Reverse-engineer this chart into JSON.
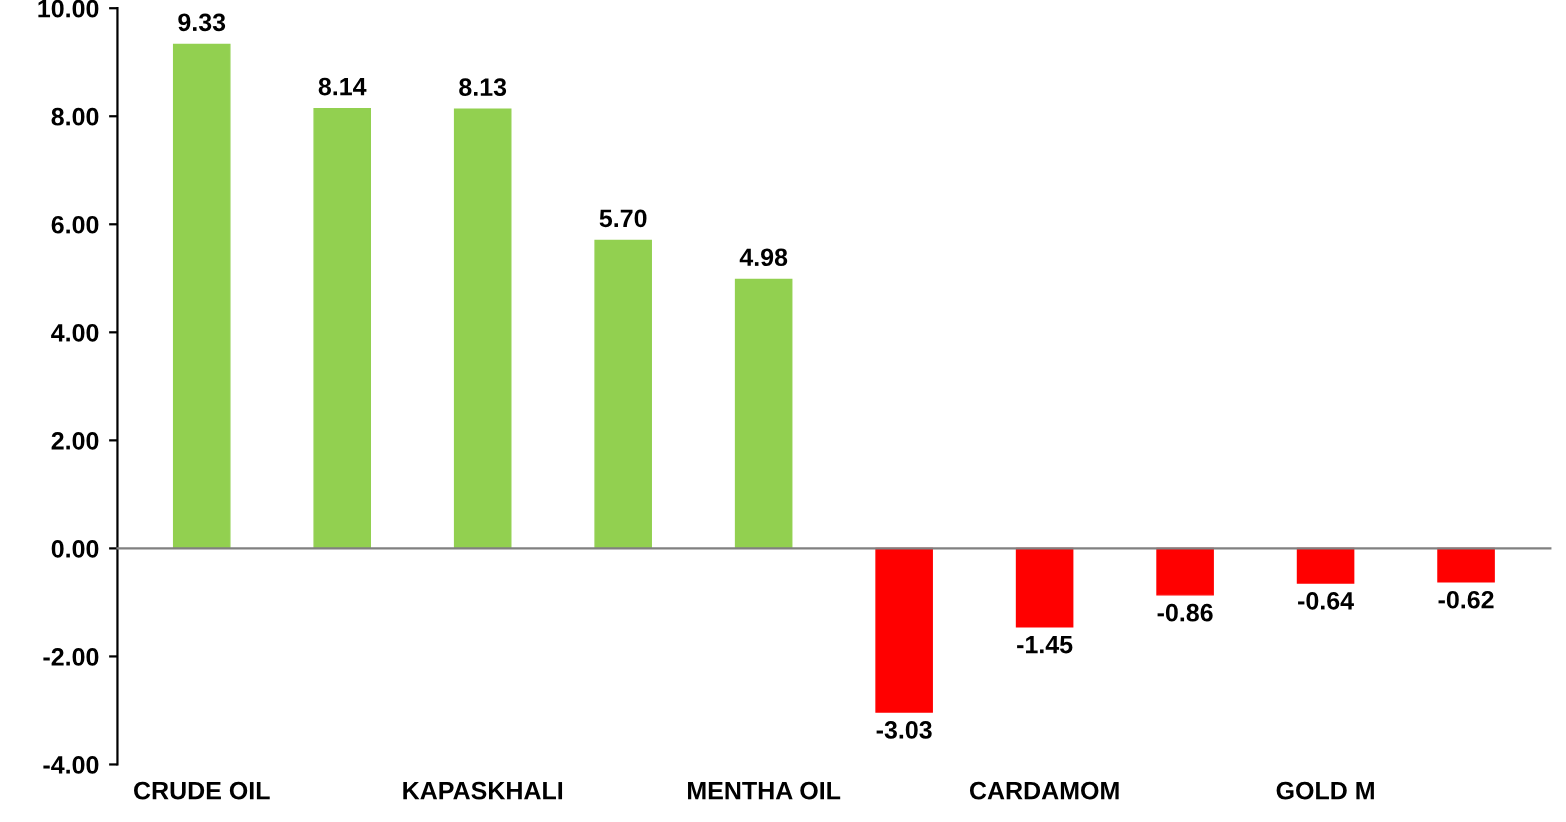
{
  "chart_data": {
    "type": "bar",
    "categories": [
      "CRUDE OIL",
      null,
      "KAPASKHALI",
      null,
      "MENTHA OIL",
      null,
      "CARDAMOM",
      null,
      "GOLD M",
      null
    ],
    "values": [
      9.33,
      8.14,
      8.13,
      5.7,
      4.98,
      -3.03,
      -1.45,
      -0.86,
      -0.64,
      -0.62
    ],
    "value_labels": [
      "9.33",
      "8.14",
      "8.13",
      "5.70",
      "4.98",
      "-3.03",
      "-1.45",
      "-0.86",
      "-0.64",
      "-0.62"
    ],
    "colors": [
      "#92d050",
      "#92d050",
      "#92d050",
      "#92d050",
      "#92d050",
      "#ff0000",
      "#ff0000",
      "#ff0000",
      "#ff0000",
      "#ff0000"
    ],
    "ylim": [
      -4,
      10
    ],
    "yticks": [
      {
        "value": 10,
        "label": "10.00"
      },
      {
        "value": 8,
        "label": "8.00"
      },
      {
        "value": 6,
        "label": "6.00"
      },
      {
        "value": 4,
        "label": "4.00"
      },
      {
        "value": 2,
        "label": "2.00"
      },
      {
        "value": 0,
        "label": "0.00"
      },
      {
        "value": -2,
        "label": "-2.00"
      },
      {
        "value": -4,
        "label": "-4.00"
      }
    ],
    "legend": false
  }
}
